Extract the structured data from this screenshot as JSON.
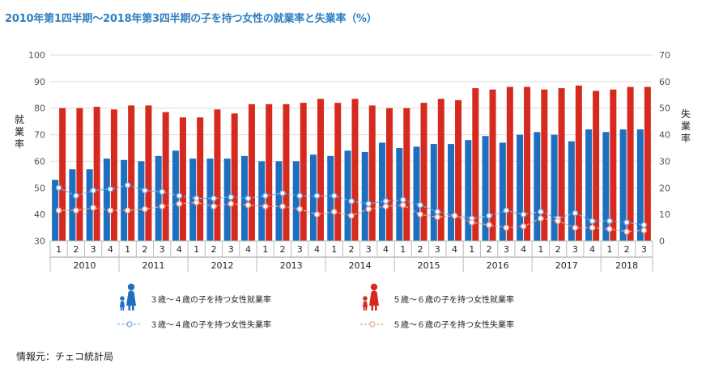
{
  "title": "2010年第1四半期～2018年第3四半期の子を持つ女性の就業率と失業率（%）",
  "source": "情報元：チェコ統計局",
  "chart_data": {
    "type": "bar+line",
    "x_quarters": [
      "1",
      "2",
      "3",
      "4",
      "1",
      "2",
      "3",
      "4",
      "1",
      "2",
      "3",
      "4",
      "1",
      "2",
      "3",
      "4",
      "1",
      "2",
      "3",
      "4",
      "1",
      "2",
      "3",
      "4",
      "1",
      "2",
      "3",
      "4",
      "1",
      "2",
      "3",
      "4",
      "1",
      "2",
      "3"
    ],
    "x_years": [
      "2010",
      "2011",
      "2012",
      "2013",
      "2014",
      "2015",
      "2016",
      "2017",
      "2018"
    ],
    "y_left": {
      "label": "就業率",
      "ylim": [
        30,
        100
      ],
      "ticks": [
        30,
        40,
        50,
        60,
        70,
        80,
        90,
        100
      ]
    },
    "y_right": {
      "label": "失業率",
      "ylim": [
        0,
        70
      ],
      "ticks": [
        0,
        10,
        20,
        30,
        40,
        50,
        60,
        70
      ]
    },
    "grid": true,
    "legend_placement": "bottom",
    "series": [
      {
        "name": "３歳～４歳の子を持つ女性就業率",
        "kind": "bar",
        "axis": "left",
        "color": "#1f6fc1",
        "values": [
          53,
          57,
          57,
          61,
          60.5,
          60,
          62,
          64,
          61,
          61,
          61,
          62,
          60,
          60,
          60,
          62.5,
          62,
          64,
          63.5,
          67,
          65,
          65.5,
          66.5,
          66.5,
          68,
          69.5,
          67,
          70,
          71,
          70,
          67.5,
          72,
          71,
          72,
          72
        ]
      },
      {
        "name": "５歳～６歳の子を持つ女性就業率",
        "kind": "bar",
        "axis": "left",
        "color": "#d62a1e",
        "values": [
          80,
          80,
          80.5,
          79.5,
          81,
          81,
          78.5,
          76.5,
          76.5,
          79.5,
          78,
          81.5,
          81.5,
          81.5,
          82,
          83.5,
          82,
          83.5,
          81,
          80,
          80,
          82,
          83.5,
          83,
          87.5,
          87,
          88,
          88,
          87,
          87.5,
          88.5,
          86.5,
          87,
          88,
          88
        ]
      },
      {
        "name": "３歳～４歳の子を持つ女性失業率",
        "kind": "line",
        "axis": "right",
        "color": "#7fb0e0",
        "values": [
          20,
          17,
          19,
          19.5,
          21,
          19,
          18.5,
          17,
          16,
          16,
          16.5,
          16,
          17,
          18,
          17,
          17,
          17,
          15,
          14,
          15,
          15.5,
          13.5,
          11,
          9.5,
          8.5,
          9.5,
          11.5,
          10,
          11,
          8.5,
          10.5,
          7.5,
          7.5,
          7,
          6
        ]
      },
      {
        "name": "５歳～６歳の子を持つ女性失業率",
        "kind": "line",
        "axis": "right",
        "color": "#eea9a1",
        "values": [
          11.5,
          11.5,
          12.5,
          11.5,
          11.5,
          12,
          13,
          14,
          14.5,
          13,
          14,
          13.5,
          13,
          13,
          12,
          10,
          11,
          9.5,
          12,
          13,
          13.5,
          10,
          9,
          9.5,
          7,
          6,
          5,
          5.5,
          8.5,
          7.5,
          5,
          5,
          4.5,
          3.5,
          4
        ]
      }
    ]
  },
  "legend": {
    "items": [
      {
        "label": "３歳～４歳の子を持つ女性就業率",
        "icon": "mother-child-blue-icon"
      },
      {
        "label": "５歳～６歳の子を持つ女性就業率",
        "icon": "mother-child-red-icon"
      },
      {
        "label": "３歳～４歳の子を持つ女性失業率",
        "icon": "blue-line-marker-icon"
      },
      {
        "label": "５歳～６歳の子を持つ女性失業率",
        "icon": "pink-line-marker-icon"
      }
    ]
  }
}
